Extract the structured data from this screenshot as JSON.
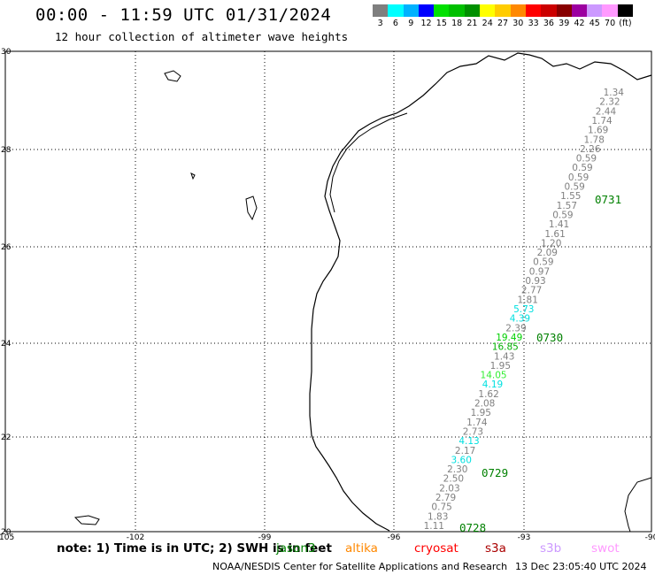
{
  "header": {
    "title": "00:00 - 11:59 UTC 01/31/2024",
    "subtitle": "12 hour collection of altimeter wave heights"
  },
  "colorbar": {
    "colors": [
      "#7f7f7f",
      "#00ffff",
      "#00b2ff",
      "#0000ff",
      "#00e000",
      "#00c000",
      "#009000",
      "#ffff00",
      "#ffcc00",
      "#ff8800",
      "#ff0000",
      "#cc0000",
      "#880000",
      "#9c00a0",
      "#cc99ff",
      "#ff99ff",
      "#000000"
    ],
    "labels": [
      "3",
      "6",
      "9",
      "12",
      "15",
      "18",
      "21",
      "24",
      "27",
      "30",
      "33",
      "36",
      "39",
      "42",
      "45",
      "70",
      "(ft)"
    ]
  },
  "map": {
    "lon_labels": [
      "-105",
      "-102",
      "-99",
      "-96",
      "-93",
      "-90"
    ],
    "lat_labels": [
      "30",
      "28",
      "26",
      "24",
      "22",
      "20"
    ],
    "track_points": [
      {
        "v": "1.34",
        "c": "#808080"
      },
      {
        "v": "2.32",
        "c": "#808080"
      },
      {
        "v": "2.44",
        "c": "#808080"
      },
      {
        "v": "1.74",
        "c": "#808080"
      },
      {
        "v": "1.69",
        "c": "#808080"
      },
      {
        "v": "1.78",
        "c": "#808080"
      },
      {
        "v": "2.26",
        "c": "#808080"
      },
      {
        "v": "0.59",
        "c": "#808080"
      },
      {
        "v": "0.59",
        "c": "#808080"
      },
      {
        "v": "0.59",
        "c": "#808080"
      },
      {
        "v": "0.59",
        "c": "#808080"
      },
      {
        "v": "1.55",
        "c": "#808080"
      },
      {
        "v": "1.57",
        "c": "#808080"
      },
      {
        "v": "0.59",
        "c": "#808080"
      },
      {
        "v": "1.41",
        "c": "#808080"
      },
      {
        "v": "1.61",
        "c": "#808080"
      },
      {
        "v": "1.20",
        "c": "#808080"
      },
      {
        "v": "2.09",
        "c": "#808080"
      },
      {
        "v": "0.59",
        "c": "#808080"
      },
      {
        "v": "0.97",
        "c": "#808080"
      },
      {
        "v": "0.93",
        "c": "#808080"
      },
      {
        "v": "2.77",
        "c": "#808080"
      },
      {
        "v": "1.81",
        "c": "#808080"
      },
      {
        "v": "5.73",
        "c": "#00e0e0"
      },
      {
        "v": "4.39",
        "c": "#00e0e0"
      },
      {
        "v": "2.39",
        "c": "#808080"
      },
      {
        "v": "19.49",
        "c": "#00d000"
      },
      {
        "v": "16.85",
        "c": "#00b000"
      },
      {
        "v": "1.43",
        "c": "#808080"
      },
      {
        "v": "1.95",
        "c": "#808080"
      },
      {
        "v": "14.05",
        "c": "#33ee33"
      },
      {
        "v": "4.19",
        "c": "#00e0e0"
      },
      {
        "v": "1.62",
        "c": "#808080"
      },
      {
        "v": "2.08",
        "c": "#808080"
      },
      {
        "v": "1.95",
        "c": "#808080"
      },
      {
        "v": "1.74",
        "c": "#808080"
      },
      {
        "v": "2.73",
        "c": "#808080"
      },
      {
        "v": "4.13",
        "c": "#00e0e0"
      },
      {
        "v": "2.17",
        "c": "#808080"
      },
      {
        "v": "3.60",
        "c": "#00e0e0"
      },
      {
        "v": "2.30",
        "c": "#808080"
      },
      {
        "v": "2.50",
        "c": "#808080"
      },
      {
        "v": "2.03",
        "c": "#808080"
      },
      {
        "v": "2.79",
        "c": "#808080"
      },
      {
        "v": "0.75",
        "c": "#808080"
      },
      {
        "v": "1.83",
        "c": "#808080"
      },
      {
        "v": "1.11",
        "c": "#808080"
      }
    ],
    "time_labels": [
      "0731",
      "0730",
      "0729",
      "0728"
    ],
    "time_label_color": "#008000"
  },
  "footer": {
    "note": "note: 1) Time is in UTC; 2) SWH is in feet",
    "satellites": [
      {
        "name": "jason3",
        "color": "#008000"
      },
      {
        "name": "altika",
        "color": "#ff8800"
      },
      {
        "name": "cryosat",
        "color": "#ff0000"
      },
      {
        "name": "s3a",
        "color": "#aa0000"
      },
      {
        "name": "s3b",
        "color": "#cc99ff"
      },
      {
        "name": "swot",
        "color": "#ff99ff"
      }
    ],
    "credit": "NOAA/NESDIS Center for Satellite Applications and Research",
    "timestamp": "13 Dec 23:05:40 UTC 2024"
  }
}
